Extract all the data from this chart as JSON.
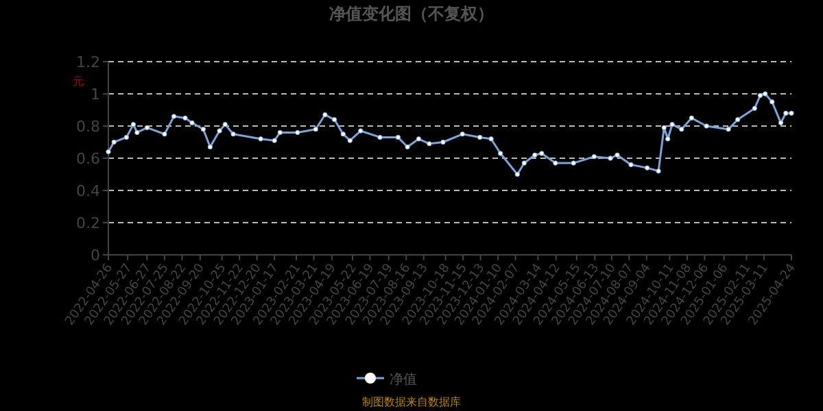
{
  "chart_data": {
    "type": "line",
    "title": "净值变化图（不复权）",
    "ylabel": "元",
    "annotations": [
      "制图数据来自数据库"
    ],
    "x": [
      "2022-04-26",
      "2022-05-05",
      "2022-05-25",
      "2022-06-05",
      "2022-06-11",
      "2022-06-27",
      "2022-07-25",
      "2022-08-09",
      "2022-08-27",
      "2022-09-07",
      "2022-09-25",
      "2022-10-06",
      "2022-10-21",
      "2022-10-30",
      "2022-11-12",
      "2022-12-26",
      "2023-01-17",
      "2023-01-26",
      "2023-02-23",
      "2023-03-24",
      "2023-04-08",
      "2023-04-23",
      "2023-05-07",
      "2023-05-18",
      "2023-06-04",
      "2023-07-05",
      "2023-08-03",
      "2023-08-18",
      "2023-09-05",
      "2023-09-22",
      "2023-10-14",
      "2023-11-14",
      "2023-12-12",
      "2023-12-30",
      "2024-01-14",
      "2024-02-10",
      "2024-02-21",
      "2024-03-09",
      "2024-03-20",
      "2024-04-11",
      "2024-05-10",
      "2024-06-12",
      "2024-07-08",
      "2024-07-19",
      "2024-08-10",
      "2024-09-05",
      "2024-09-23",
      "2024-10-02",
      "2024-10-08",
      "2024-10-15",
      "2024-10-30",
      "2024-11-15",
      "2024-12-09",
      "2025-01-13",
      "2025-01-28",
      "2025-02-24",
      "2025-03-05",
      "2025-03-13",
      "2025-03-24",
      "2025-04-07",
      "2025-04-15",
      "2025-04-24"
    ],
    "series": [
      {
        "name": "净值",
        "color": "#7ba4d9",
        "values": [
          0.64,
          0.7,
          0.73,
          0.81,
          0.76,
          0.79,
          0.75,
          0.86,
          0.85,
          0.82,
          0.78,
          0.67,
          0.77,
          0.81,
          0.75,
          0.72,
          0.71,
          0.76,
          0.76,
          0.78,
          0.87,
          0.84,
          0.75,
          0.71,
          0.77,
          0.73,
          0.73,
          0.67,
          0.72,
          0.69,
          0.7,
          0.75,
          0.73,
          0.72,
          0.63,
          0.5,
          0.57,
          0.62,
          0.63,
          0.57,
          0.57,
          0.61,
          0.6,
          0.62,
          0.56,
          0.54,
          0.52,
          0.79,
          0.72,
          0.81,
          0.78,
          0.85,
          0.8,
          0.78,
          0.84,
          0.91,
          0.99,
          1.0,
          0.95,
          0.82,
          0.88,
          0.88
        ]
      }
    ],
    "xlim": [
      "2022-04-26",
      "2025-04-24"
    ],
    "xticks": [
      "2022-04-26",
      "2022-05-27",
      "2022-06-27",
      "2022-07-25",
      "2022-08-22",
      "2022-09-20",
      "2022-10-25",
      "2022-11-22",
      "2022-12-20",
      "2023-01-17",
      "2023-02-21",
      "2023-03-21",
      "2023-04-19",
      "2023-05-22",
      "2023-06-19",
      "2023-07-19",
      "2023-08-16",
      "2023-09-13",
      "2023-10-18",
      "2023-11-15",
      "2023-12-13",
      "2024-01-10",
      "2024-02-07",
      "2024-03-14",
      "2024-04-12",
      "2024-05-15",
      "2024-06-13",
      "2024-07-10",
      "2024-08-07",
      "2024-09-04",
      "2024-10-11",
      "2024-11-08",
      "2024-12-06",
      "2025-01-06",
      "2025-02-11",
      "2025-03-11",
      "2025-04-24"
    ],
    "ylim": [
      0,
      1.2
    ],
    "yticks": [
      0,
      0.2,
      0.4,
      0.6,
      0.8,
      1,
      1.2
    ],
    "grid": "y",
    "legend": "bottom",
    "marker": "circle",
    "line_style": "solid"
  }
}
